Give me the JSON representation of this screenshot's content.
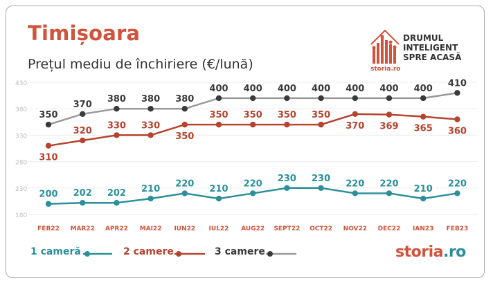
{
  "header": {
    "title": "Timișoara",
    "subtitle": "Prețul mediu de închiriere (€/lună)"
  },
  "logo": {
    "line1": "DRUMUL",
    "line2": "INTELIGENT",
    "line3": "SPRE ACASĂ",
    "brand": "storia.ro",
    "icon": "house-bars-icon"
  },
  "footer_brand": {
    "name": "storia",
    "suffix": ".ro"
  },
  "colors": {
    "teal": "#2a8f9a",
    "red": "#b5432e",
    "dark": "#3a3a3a",
    "gray_line": "#9a9a9a",
    "brand": "#d0533b"
  },
  "chart_data": {
    "type": "line",
    "title": "Prețul mediu de închiriere (€/lună)",
    "xlabel": "",
    "ylabel": "",
    "ylim": [
      180,
      430
    ],
    "yticks": [
      180,
      230,
      280,
      330,
      380,
      430
    ],
    "grid": true,
    "legend_position": "bottom",
    "categories": [
      "FEB22",
      "MAR22",
      "APR22",
      "MAI22",
      "IUN22",
      "IUL22",
      "AUG22",
      "SEPT22",
      "OCT22",
      "NOV22",
      "DEC22",
      "IAN23",
      "FEB23"
    ],
    "series": [
      {
        "name": "1 cameră",
        "color": "#2a8f9a",
        "values": [
          200,
          202,
          202,
          210,
          220,
          210,
          220,
          230,
          230,
          220,
          220,
          210,
          220
        ]
      },
      {
        "name": "2 camere",
        "color": "#b5432e",
        "values": [
          310,
          320,
          330,
          330,
          350,
          350,
          350,
          350,
          350,
          370,
          369,
          365,
          360
        ]
      },
      {
        "name": "3 camere",
        "color": "#3a3a3a",
        "line_color": "#9a9a9a",
        "values": [
          350,
          370,
          380,
          380,
          380,
          400,
          400,
          400,
          400,
          400,
          400,
          400,
          410
        ]
      }
    ]
  }
}
